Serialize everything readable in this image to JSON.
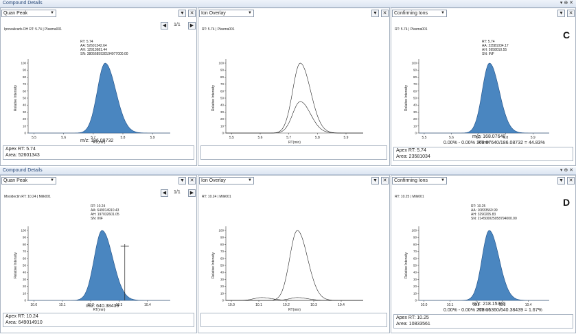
{
  "colors": {
    "peak_fill": "#4a86c0",
    "peak_edge": "#1f4f86",
    "title_text": "#2a4a7a"
  },
  "blocks": [
    {
      "title": "Compound Details",
      "window_controls": "▾ ⊕ ✕",
      "panels": {
        "quan": {
          "dropdown": "Quan Peak",
          "info": "Iprovalicarb-OH   RT: 5.74 | Plasma001",
          "nav": "1/1",
          "annotation": [
            "RT: 5.74",
            "AA: 52601342.64",
            "AH: 12913681.44",
            "SN: 3805685930194977000.00"
          ],
          "xlabel": "RT(min)",
          "ylabel": "Relative Intensity",
          "mz": "m/z: 186.08732",
          "footer": [
            "Apex RT: 5.74",
            "Area: 52601343"
          ]
        },
        "overlay": {
          "dropdown": "Ion Overlay",
          "info": "RT: 5.74 | Plasma001",
          "xlabel": "RT(min)",
          "ylabel": "Relative Intensity"
        },
        "confirm": {
          "dropdown": "Confirming Ions",
          "info": "RT: 5.74 | Plasma001",
          "letter": "C",
          "annotation": [
            "RT: 5.74",
            "AA: 23581034.17",
            "AH: 5958010.55",
            "SN: INF"
          ],
          "xlabel": "RT(min)",
          "ylabel": "Relative Intensity",
          "mz": "m/z: 168.07640",
          "ratio": "0.00% - 0.00% 168.07640/186.08732 = 44.83%",
          "footer": [
            "Apex RT: 5.74",
            "Area: 23581034"
          ]
        }
      },
      "axis": {
        "xticks": [
          "5.5",
          "5.6",
          "5.7",
          "5.8",
          "5.9"
        ],
        "yticks": [
          "0",
          "10",
          "20",
          "30",
          "40",
          "50",
          "60",
          "70",
          "80",
          "90",
          "100"
        ]
      }
    },
    {
      "title": "Compound Details",
      "window_controls": "▾ ⊕ ✕",
      "panels": {
        "quan": {
          "dropdown": "Quan Peak",
          "info": "Moxidectin   RT: 10.24 | Milk001",
          "nav": "1/1",
          "annotation": [
            "RT: 10.24",
            "AA: 649014910.43",
            "AH: 197032601.05",
            "SN: INF"
          ],
          "xlabel": "RT(min)",
          "ylabel": "Relative Intensity",
          "mz": "m/z: 640.38439",
          "footer": [
            "Apex RT: 10.24",
            "Area: 649014910"
          ]
        },
        "overlay": {
          "dropdown": "Ion Overlay",
          "info": "RT: 10.24 | Milk001",
          "xlabel": "RT(min)",
          "ylabel": "Relative Intensity"
        },
        "confirm": {
          "dropdown": "Confirming Ions",
          "info": "RT: 10.25 | Milk001",
          "letter": "D",
          "annotation": [
            "RT: 10.25",
            "AA: 10833560.99",
            "AH: 3290205.83",
            "SN: 214500025058794000.00"
          ],
          "xlabel": "RT(min)",
          "ylabel": "Relative Intensity",
          "mz": "m/z: 218.15360",
          "ratio": "0.00% - 0.00% 218.15360/640.38439 = 1.67%",
          "footer": [
            "Apex RT: 10.25",
            "Area: 10833561"
          ]
        }
      },
      "axis": {
        "xticks": [
          "10.0",
          "10.1",
          "10.2",
          "10.3",
          "10.4"
        ],
        "yticks": [
          "0",
          "10",
          "20",
          "30",
          "40",
          "50",
          "60",
          "70",
          "80",
          "90",
          "100"
        ]
      }
    }
  ],
  "chart_data": [
    {
      "type": "area",
      "xlabel": "RT(min)",
      "ylabel": "Relative Intensity",
      "xlim": [
        5.48,
        5.96
      ],
      "ylim": [
        0,
        100
      ],
      "series": [
        {
          "peak_rt": 5.74,
          "height": 100
        }
      ]
    },
    {
      "type": "line",
      "xlabel": "RT(min)",
      "ylabel": "Relative Intensity",
      "xlim": [
        5.48,
        5.96
      ],
      "ylim": [
        0,
        100
      ],
      "series": [
        {
          "peak_rt": 5.74,
          "height": 100
        },
        {
          "peak_rt": 5.74,
          "height": 45
        }
      ]
    },
    {
      "type": "area",
      "xlabel": "RT(min)",
      "ylabel": "Relative Intensity",
      "xlim": [
        5.48,
        5.96
      ],
      "ylim": [
        0,
        100
      ],
      "series": [
        {
          "peak_rt": 5.74,
          "height": 100
        }
      ]
    },
    {
      "type": "area",
      "xlabel": "RT(min)",
      "ylabel": "Relative Intensity",
      "xlim": [
        9.98,
        10.48
      ],
      "ylim": [
        0,
        100
      ],
      "series": [
        {
          "peak_rt": 10.24,
          "height": 100
        }
      ]
    },
    {
      "type": "line",
      "xlabel": "RT(min)",
      "ylabel": "Relative Intensity",
      "xlim": [
        9.98,
        10.48
      ],
      "ylim": [
        0,
        100
      ],
      "series": [
        {
          "peak_rt": 10.24,
          "height": 100
        },
        {
          "peak_rt": 10.24,
          "height": 4
        },
        {
          "peak_rt": 10.11,
          "height": 4
        }
      ]
    },
    {
      "type": "area",
      "xlabel": "RT(min)",
      "ylabel": "Relative Intensity",
      "xlim": [
        9.98,
        10.48
      ],
      "ylim": [
        0,
        100
      ],
      "series": [
        {
          "peak_rt": 10.25,
          "height": 100
        }
      ]
    }
  ]
}
